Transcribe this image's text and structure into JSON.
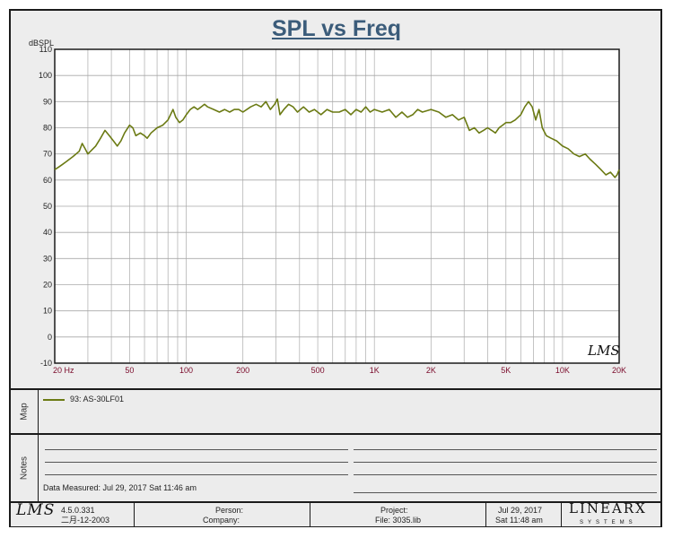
{
  "chart_data": {
    "type": "line",
    "title": "SPL vs Freq",
    "ylabel": "dBSPL",
    "xscale": "log",
    "xlim": [
      20,
      20000
    ],
    "ylim": [
      -10,
      110
    ],
    "yticks": [
      -10,
      0,
      10,
      20,
      30,
      40,
      50,
      60,
      70,
      80,
      90,
      100,
      110
    ],
    "xticks": [
      {
        "value": 20,
        "label": "20  Hz"
      },
      {
        "value": 50,
        "label": "50"
      },
      {
        "value": 100,
        "label": "100"
      },
      {
        "value": 200,
        "label": "200"
      },
      {
        "value": 500,
        "label": "500"
      },
      {
        "value": 1000,
        "label": "1K"
      },
      {
        "value": 2000,
        "label": "2K"
      },
      {
        "value": 5000,
        "label": "5K"
      },
      {
        "value": 10000,
        "label": "10K"
      },
      {
        "value": 20000,
        "label": "20K"
      }
    ],
    "grid": true,
    "watermark": "LMS",
    "series": [
      {
        "name": "93: AS-30LF01",
        "color": "#6b7a13",
        "points": [
          [
            20,
            64
          ],
          [
            21,
            65
          ],
          [
            22,
            66
          ],
          [
            23,
            67
          ],
          [
            25,
            69
          ],
          [
            27,
            71
          ],
          [
            28,
            74
          ],
          [
            29,
            72
          ],
          [
            30,
            70
          ],
          [
            31,
            71
          ],
          [
            33,
            73
          ],
          [
            35,
            76
          ],
          [
            37,
            79
          ],
          [
            39,
            77
          ],
          [
            41,
            75
          ],
          [
            43,
            73
          ],
          [
            45,
            75
          ],
          [
            47,
            78
          ],
          [
            50,
            81
          ],
          [
            52,
            80
          ],
          [
            54,
            77
          ],
          [
            57,
            78
          ],
          [
            60,
            77
          ],
          [
            62,
            76
          ],
          [
            65,
            78
          ],
          [
            70,
            80
          ],
          [
            75,
            81
          ],
          [
            80,
            83
          ],
          [
            85,
            87
          ],
          [
            88,
            84
          ],
          [
            92,
            82
          ],
          [
            96,
            83
          ],
          [
            100,
            85
          ],
          [
            105,
            87
          ],
          [
            110,
            88
          ],
          [
            115,
            87
          ],
          [
            120,
            88
          ],
          [
            125,
            89
          ],
          [
            130,
            88
          ],
          [
            140,
            87
          ],
          [
            150,
            86
          ],
          [
            160,
            87
          ],
          [
            170,
            86
          ],
          [
            180,
            87
          ],
          [
            190,
            87
          ],
          [
            200,
            86
          ],
          [
            210,
            87
          ],
          [
            220,
            88
          ],
          [
            235,
            89
          ],
          [
            250,
            88
          ],
          [
            265,
            90
          ],
          [
            280,
            87
          ],
          [
            295,
            89
          ],
          [
            305,
            91
          ],
          [
            315,
            85
          ],
          [
            330,
            87
          ],
          [
            350,
            89
          ],
          [
            370,
            88
          ],
          [
            390,
            86
          ],
          [
            420,
            88
          ],
          [
            450,
            86
          ],
          [
            480,
            87
          ],
          [
            520,
            85
          ],
          [
            560,
            87
          ],
          [
            600,
            86
          ],
          [
            650,
            86
          ],
          [
            700,
            87
          ],
          [
            750,
            85
          ],
          [
            800,
            87
          ],
          [
            850,
            86
          ],
          [
            900,
            88
          ],
          [
            950,
            86
          ],
          [
            1000,
            87
          ],
          [
            1100,
            86
          ],
          [
            1200,
            87
          ],
          [
            1300,
            84
          ],
          [
            1400,
            86
          ],
          [
            1500,
            84
          ],
          [
            1600,
            85
          ],
          [
            1700,
            87
          ],
          [
            1800,
            86
          ],
          [
            2000,
            87
          ],
          [
            2200,
            86
          ],
          [
            2400,
            84
          ],
          [
            2600,
            85
          ],
          [
            2800,
            83
          ],
          [
            3000,
            84
          ],
          [
            3200,
            79
          ],
          [
            3400,
            80
          ],
          [
            3600,
            78
          ],
          [
            3800,
            79
          ],
          [
            4000,
            80
          ],
          [
            4200,
            79
          ],
          [
            4400,
            78
          ],
          [
            4600,
            80
          ],
          [
            4800,
            81
          ],
          [
            5000,
            82
          ],
          [
            5300,
            82
          ],
          [
            5600,
            83
          ],
          [
            6000,
            85
          ],
          [
            6300,
            88
          ],
          [
            6600,
            90
          ],
          [
            6900,
            88
          ],
          [
            7200,
            83
          ],
          [
            7500,
            87
          ],
          [
            7800,
            80
          ],
          [
            8200,
            77
          ],
          [
            8700,
            76
          ],
          [
            9300,
            75
          ],
          [
            10000,
            73
          ],
          [
            10700,
            72
          ],
          [
            11500,
            70
          ],
          [
            12300,
            69
          ],
          [
            13200,
            70
          ],
          [
            14000,
            68
          ],
          [
            15000,
            66
          ],
          [
            16000,
            64
          ],
          [
            17000,
            62
          ],
          [
            18000,
            63
          ],
          [
            19000,
            61
          ],
          [
            19500,
            62
          ],
          [
            20000,
            64
          ]
        ]
      }
    ]
  },
  "side_panels": {
    "map_label": "Map",
    "notes_label": "Notes",
    "legend_entry": "93: AS-30LF01",
    "data_measured": "Data Measured: Jul 29, 2017  Sat 11:46 am"
  },
  "footer": {
    "logo": "LMS",
    "version": "4.5.0.331",
    "version_date": "二月-12-2003",
    "person_label": "Person:",
    "company_label": "Company:",
    "project_label": "Project:",
    "file_label": "File: 3035.lib",
    "date": "Jul 29, 2017",
    "time": "Sat 11:48 am",
    "brand": "LINEARX",
    "brand_sub": "SYSTEMS"
  }
}
